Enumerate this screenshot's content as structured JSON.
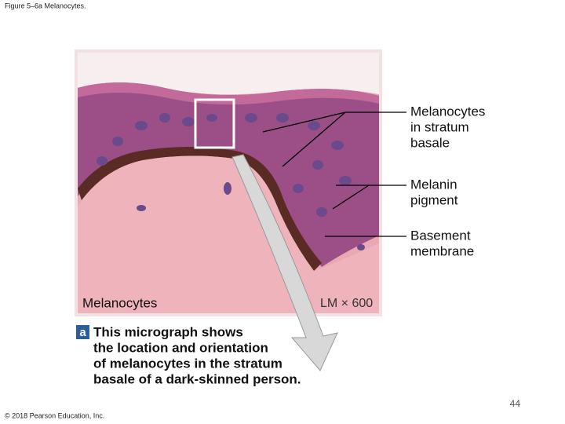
{
  "header": {
    "title": "Figure 5–6a Melanocytes."
  },
  "figure": {
    "labels": [
      {
        "lines": [
          "Melanocytes",
          "in stratum",
          "basale"
        ]
      },
      {
        "lines": [
          "Melanin",
          "pigment"
        ]
      },
      {
        "lines": [
          "Basement",
          "membrane"
        ]
      }
    ],
    "image_label": "Melanocytes",
    "magnification": "LM × 600",
    "part_letter": "a",
    "caption_lines": [
      "This micrograph shows",
      "the location and orientation",
      "of melanocytes in the stratum",
      "basale of a dark-skinned person."
    ]
  },
  "footer": {
    "page_number": 44,
    "copyright": "© 2018 Pearson Education, Inc."
  }
}
